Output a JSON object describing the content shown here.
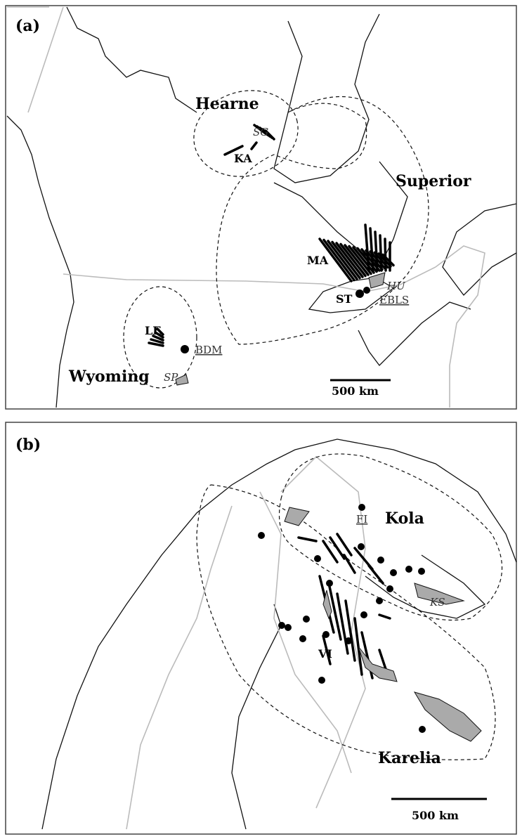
{
  "panels": [
    {
      "label": "(a)",
      "cratons": [
        "Hearne",
        "Superior",
        "Wyoming"
      ],
      "annotations": [
        "SG",
        "KA",
        "MA",
        "HU",
        "ST",
        "EBLS",
        "LE",
        "BDM",
        "SP"
      ],
      "scale_bar": "500 km"
    },
    {
      "label": "(b)",
      "cratons": [
        "Kola",
        "Karelia"
      ],
      "annotations": [
        "FI",
        "KS",
        "VI"
      ],
      "scale_bar": "500 km"
    }
  ]
}
